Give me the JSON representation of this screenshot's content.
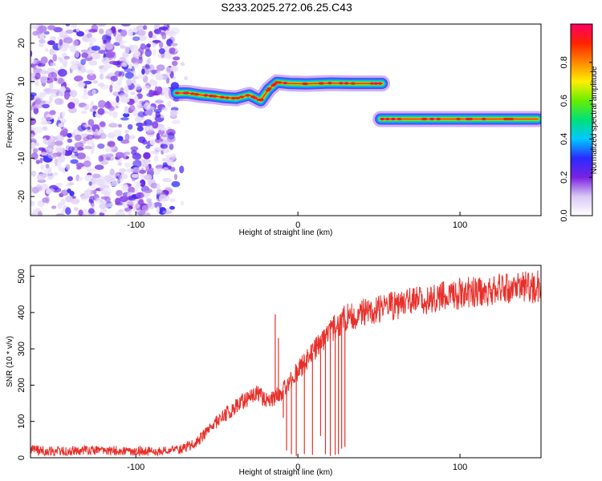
{
  "figure": {
    "title": "S233.2025.272.06.25.C43"
  },
  "colors": {
    "snr_line": "#e8302a",
    "colormap": [
      "#ffffff",
      "#d9c9f5",
      "#7a22e0",
      "#2a2aff",
      "#00c8ff",
      "#00e07a",
      "#66ee00",
      "#ffee00",
      "#ff8800",
      "#ff2200",
      "#ff0066"
    ]
  },
  "chart_data": [
    {
      "type": "heatmap",
      "name": "spectrogram",
      "xlabel": "Height of straight line (km)",
      "ylabel": "Frequency (Hz)",
      "xlim": [
        -165,
        150
      ],
      "ylim": [
        -25,
        25
      ],
      "x_ticks": [
        -100,
        0,
        100
      ],
      "x_tick_labels": [
        "-100",
        "0",
        "100"
      ],
      "y_ticks": [
        -20,
        -10,
        0,
        10,
        20
      ],
      "y_tick_labels": [
        "-20",
        "-10",
        "0",
        "10",
        "20"
      ],
      "colorbar": {
        "label": "Normalized spectral amplitude",
        "range": [
          0,
          1
        ],
        "ticks": [
          0.0,
          0.2,
          0.4,
          0.6,
          0.8
        ],
        "tick_labels": [
          "0.0",
          "0.2",
          "0.4",
          "0.6",
          "0.8"
        ]
      },
      "noise_region": {
        "x_range": [
          -165,
          -75
        ],
        "amplitude": [
          0.05,
          0.3
        ]
      },
      "tracks": [
        {
          "name": "track-1",
          "points": [
            [
              -75,
              7
            ],
            [
              -68,
              7
            ],
            [
              -60,
              6.5
            ],
            [
              -52,
              6.2
            ],
            [
              -45,
              5.8
            ],
            [
              -38,
              5.6
            ],
            [
              -30,
              6.5
            ],
            [
              -23,
              5
            ],
            [
              -18,
              8
            ],
            [
              -13,
              9.8
            ],
            [
              -5,
              9.5
            ],
            [
              5,
              9.4
            ],
            [
              20,
              9.6
            ],
            [
              35,
              9.5
            ],
            [
              52,
              9.5
            ]
          ],
          "peak_amplitude": 0.95
        },
        {
          "name": "track-2",
          "points": [
            [
              51,
              0.2
            ],
            [
              60,
              0.2
            ],
            [
              80,
              0.2
            ],
            [
              100,
              0.2
            ],
            [
              120,
              0.2
            ],
            [
              148,
              0.2
            ]
          ],
          "peak_amplitude": 0.95
        }
      ]
    },
    {
      "type": "line",
      "name": "snr",
      "xlabel": "Height of straight line (km)",
      "ylabel": "SNR (10 * v/v)",
      "xlim": [
        -165,
        150
      ],
      "ylim": [
        0,
        530
      ],
      "x_ticks": [
        -100,
        0,
        100
      ],
      "x_tick_labels": [
        "-100",
        "0",
        "100"
      ],
      "y_ticks": [
        0,
        100,
        200,
        300,
        400,
        500
      ],
      "y_tick_labels": [
        "0",
        "100",
        "200",
        "300",
        "400",
        "500"
      ],
      "series": [
        {
          "name": "SNR",
          "noise": 12,
          "x": [
            -165,
            -150,
            -130,
            -110,
            -90,
            -80,
            -70,
            -62,
            -55,
            -48,
            -40,
            -32,
            -25,
            -20,
            -15,
            -10,
            -5,
            0,
            5,
            10,
            15,
            20,
            25,
            30,
            40,
            50,
            60,
            70,
            80,
            90,
            100,
            110,
            120,
            130,
            140,
            150
          ],
          "values": [
            22,
            18,
            20,
            19,
            18,
            19,
            26,
            45,
            75,
            110,
            135,
            160,
            180,
            160,
            165,
            180,
            210,
            240,
            265,
            295,
            315,
            345,
            370,
            385,
            400,
            412,
            420,
            428,
            438,
            445,
            452,
            458,
            462,
            465,
            468,
            472
          ]
        }
      ],
      "spikes": [
        [
          -14,
          395
        ],
        [
          -12,
          330
        ],
        [
          -9,
          110
        ],
        [
          -7,
          20
        ],
        [
          -4,
          10
        ],
        [
          -1,
          5
        ],
        [
          4,
          10
        ],
        [
          9,
          8
        ],
        [
          14,
          60
        ],
        [
          17,
          10
        ],
        [
          20,
          5
        ],
        [
          23,
          8
        ],
        [
          25,
          10
        ],
        [
          27,
          25
        ],
        [
          29,
          30
        ]
      ]
    }
  ]
}
